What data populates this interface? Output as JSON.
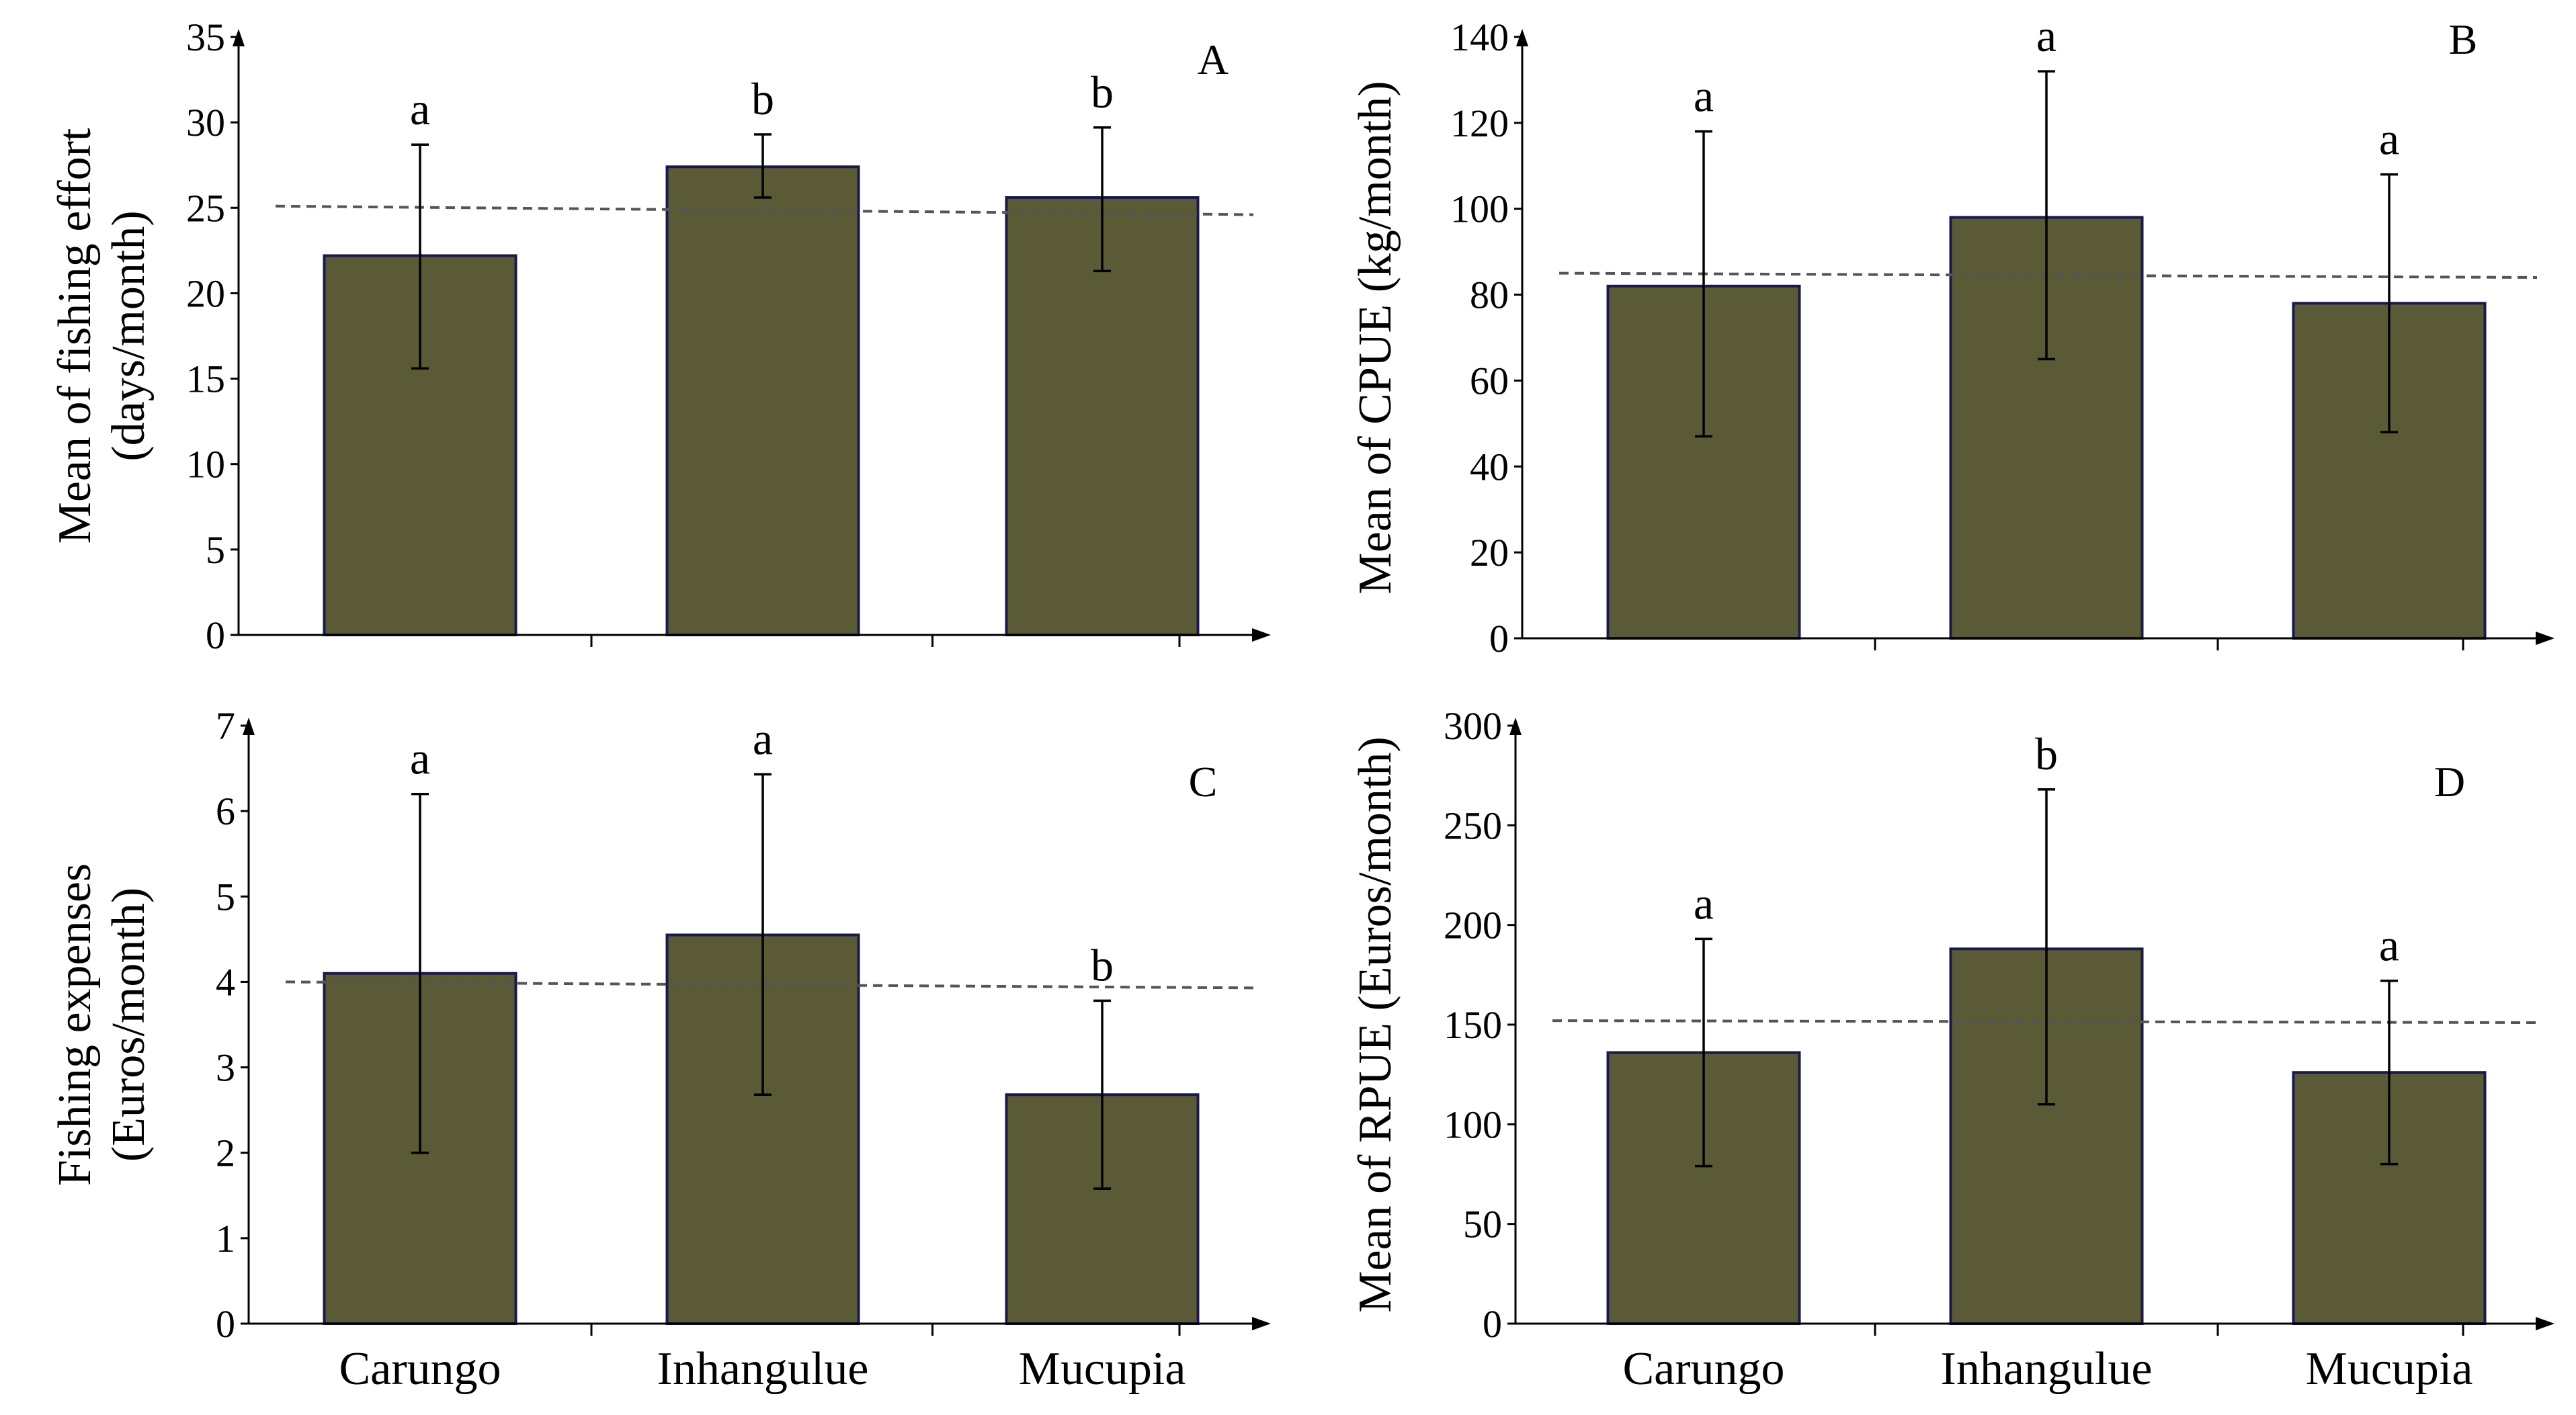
{
  "figure": {
    "bar_color": "#5a5a37",
    "bar_edge_color": "#1a1a4a",
    "reference_line_color": "#555555"
  },
  "chart_data": [
    {
      "type": "bar",
      "panel": "A",
      "categories": [
        "Carungo",
        "Inhangulue",
        "Mucupia"
      ],
      "values": [
        22.2,
        27.4,
        25.6
      ],
      "error_low": [
        15.6,
        25.6,
        21.3
      ],
      "error_high": [
        28.7,
        29.3,
        29.7
      ],
      "significance": [
        "a",
        "b",
        "b"
      ],
      "reference_line": [
        25.1,
        24.6
      ],
      "ylabel_lines": [
        "Mean of fishing effort",
        "(days/month)"
      ],
      "ylim": [
        0,
        35
      ],
      "yticks": [
        "0",
        "5",
        "10",
        "15",
        "20",
        "25",
        "30",
        "35"
      ],
      "show_category_labels": false
    },
    {
      "type": "bar",
      "panel": "B",
      "categories": [
        "Carungo",
        "Inhangulue",
        "Mucupia"
      ],
      "values": [
        82,
        98,
        78
      ],
      "error_low": [
        47,
        65,
        48
      ],
      "error_high": [
        118,
        132,
        108
      ],
      "significance": [
        "a",
        "a",
        "a"
      ],
      "reference_line": [
        85,
        84
      ],
      "ylabel_lines": [
        "Mean of CPUE (kg/month)"
      ],
      "ylim": [
        0,
        140
      ],
      "yticks": [
        "0",
        "20",
        "40",
        "60",
        "80",
        "100",
        "120",
        "140"
      ],
      "show_category_labels": false
    },
    {
      "type": "bar",
      "panel": "C",
      "categories": [
        "Carungo",
        "Inhangulue",
        "Mucupia"
      ],
      "values": [
        4.1,
        4.55,
        2.68
      ],
      "error_low": [
        2.0,
        2.68,
        1.58
      ],
      "error_high": [
        6.2,
        6.43,
        3.78
      ],
      "significance": [
        "a",
        "a",
        "b"
      ],
      "reference_line": [
        4.0,
        3.93
      ],
      "ylabel_lines": [
        "Fishing expenses",
        "(Euros/month)"
      ],
      "ylim": [
        0,
        7
      ],
      "yticks": [
        "0",
        "1",
        "2",
        "3",
        "4",
        "5",
        "6",
        "7"
      ],
      "show_category_labels": true
    },
    {
      "type": "bar",
      "panel": "D",
      "categories": [
        "Carungo",
        "Inhangulue",
        "Mucupia"
      ],
      "values": [
        136,
        188,
        126
      ],
      "error_low": [
        79,
        110,
        80
      ],
      "error_high": [
        193,
        268,
        172
      ],
      "significance": [
        "a",
        "b",
        "a"
      ],
      "reference_line": [
        152,
        151
      ],
      "ylabel_lines": [
        "Mean of RPUE (Euros/month)"
      ],
      "ylim": [
        0,
        300
      ],
      "yticks": [
        "0",
        "50",
        "100",
        "150",
        "200",
        "250",
        "300"
      ],
      "show_category_labels": true
    }
  ]
}
